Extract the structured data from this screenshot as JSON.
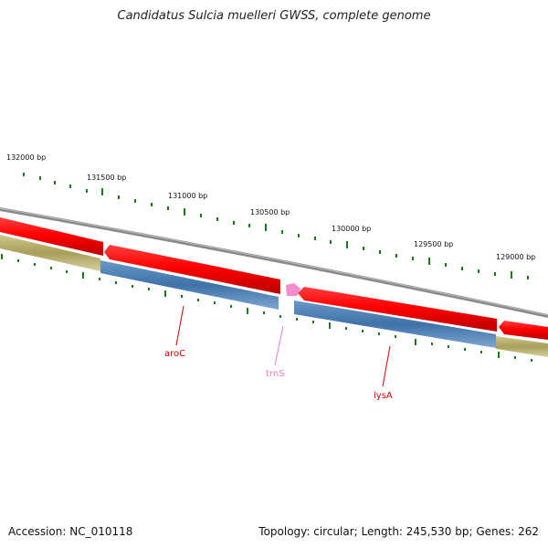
{
  "title": "Candidatus Sulcia muelleri GWSS, complete genome",
  "footer": {
    "accession": "Accession: NC_010118",
    "summary": "Topology: circular; Length: 245,530 bp; Genes: 262"
  },
  "ticks": [
    {
      "label": "132000 bp"
    },
    {
      "label": "131500 bp"
    },
    {
      "label": "131000 bp"
    },
    {
      "label": "130500 bp"
    },
    {
      "label": "130000 bp"
    },
    {
      "label": "129500 bp"
    },
    {
      "label": "129000 bp"
    }
  ],
  "genes": [
    {
      "name": "aroC",
      "color": "#cc0000"
    },
    {
      "name": "trnS",
      "color": "#e87fb8"
    },
    {
      "name": "lysA",
      "color": "#cc0000"
    }
  ],
  "colors": {
    "cds": "#ff0000",
    "feature_blue": "#4a7fb5",
    "feature_olive": "#b8b070",
    "backbone": "#808080",
    "tick": "#1a7a1a",
    "trna": "#f48ccb"
  }
}
